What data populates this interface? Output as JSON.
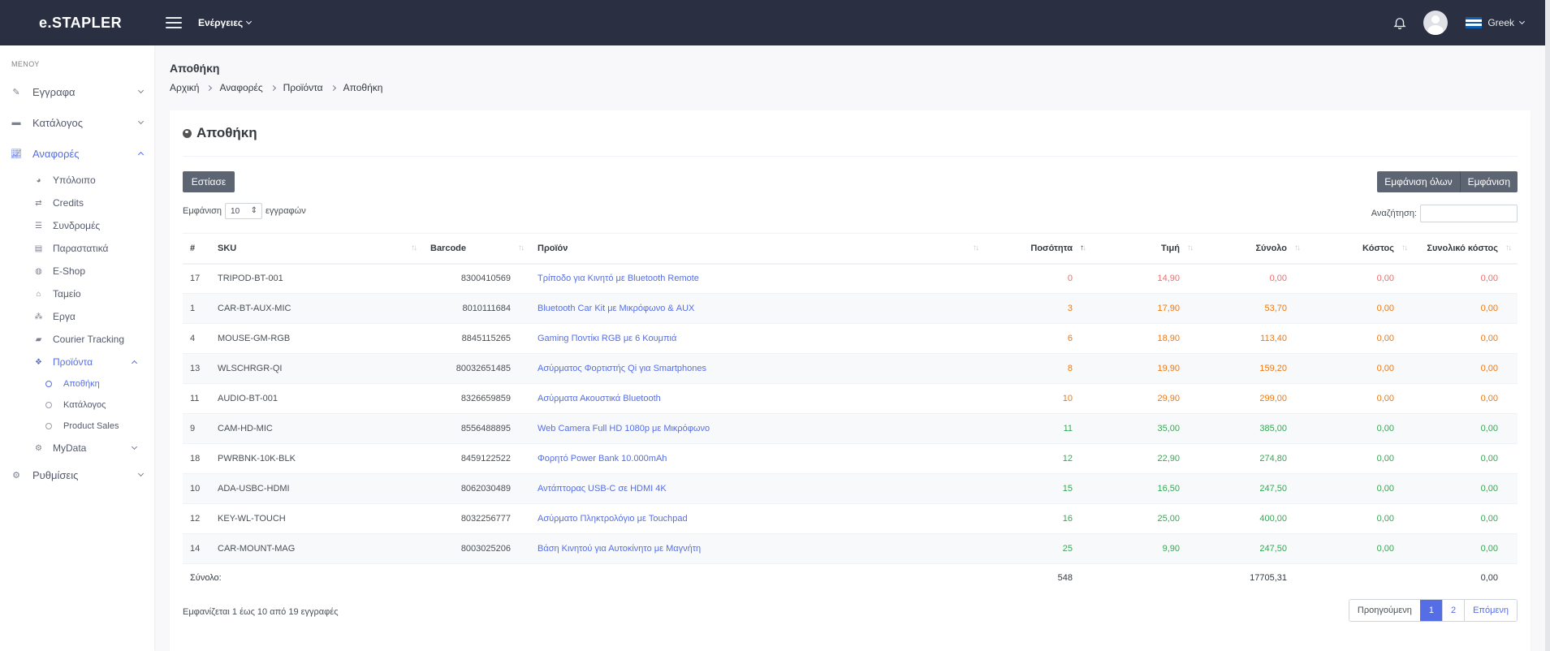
{
  "app": {
    "brand": "e.STAPLER"
  },
  "topbar": {
    "actions_label": "Ενέργειες",
    "language": "Greek"
  },
  "sidebar": {
    "menu_title": "ΜΕΝΟΥ",
    "items": [
      {
        "label": "Εγγραφα",
        "icon": "pencil-icon"
      },
      {
        "label": "Κατάλογος",
        "icon": "folder-icon"
      },
      {
        "label": "Αναφορές",
        "icon": "chart-line-icon"
      },
      {
        "label": "Ρυθμίσεις",
        "icon": "cogs-icon"
      }
    ],
    "reports_sub": [
      {
        "label": "Υπόλοιπο",
        "icon": "pie-icon"
      },
      {
        "label": "Credits",
        "icon": "exchange-icon"
      },
      {
        "label": "Συνδρομές",
        "icon": "list-icon"
      },
      {
        "label": "Παραστατικά",
        "icon": "book-icon"
      },
      {
        "label": "E-Shop",
        "icon": "globe-icon"
      },
      {
        "label": "Ταμείο",
        "icon": "store-icon"
      },
      {
        "label": "Εργα",
        "icon": "sitemap-icon"
      },
      {
        "label": "Courier Tracking",
        "icon": "truck-icon"
      },
      {
        "label": "Προϊόντα",
        "icon": "cubes-icon"
      },
      {
        "label": "MyData",
        "icon": "gears-icon"
      }
    ],
    "products_sub": [
      {
        "label": "Αποθήκη"
      },
      {
        "label": "Κατάλογος"
      },
      {
        "label": "Product Sales"
      }
    ]
  },
  "page": {
    "title": "Αποθήκη",
    "breadcrumb": [
      "Αρχική",
      "Αναφορές",
      "Προϊόντα",
      "Αποθήκη"
    ]
  },
  "card": {
    "title": "Αποθήκη",
    "focus_button": "Εστίασε",
    "show_all_button": "Εμφάνιση όλων",
    "show_button": "Εμφάνιση",
    "length_prefix": "Εμφάνιση",
    "length_value": "10",
    "length_suffix": "εγγραφών",
    "search_label": "Αναζήτηση:",
    "search_value": ""
  },
  "table": {
    "headers": [
      "#",
      "SKU",
      "Barcode",
      "Προϊόν",
      "Ποσότητα",
      "Τιμή",
      "Σύνολο",
      "Κόστος",
      "Συνολικό κόστος"
    ],
    "rows": [
      {
        "id": "17",
        "sku": "TRIPOD-BT-001",
        "barcode": "8300410569",
        "product": "Τρίποδο για Κινητό με Bluetooth Remote",
        "qty": "0",
        "price": "14,90",
        "total": "0,00",
        "cost": "0,00",
        "total_cost": "0,00",
        "level": "red"
      },
      {
        "id": "1",
        "sku": "CAR-BT-AUX-MIC",
        "barcode": "8010111684",
        "product": "Bluetooth Car Kit με Μικρόφωνο & AUX",
        "qty": "3",
        "price": "17,90",
        "total": "53,70",
        "cost": "0,00",
        "total_cost": "0,00",
        "level": "orange"
      },
      {
        "id": "4",
        "sku": "MOUSE-GM-RGB",
        "barcode": "8845115265",
        "product": "Gaming Ποντίκι RGB με 6 Κουμπιά",
        "qty": "6",
        "price": "18,90",
        "total": "113,40",
        "cost": "0,00",
        "total_cost": "0,00",
        "level": "orange"
      },
      {
        "id": "13",
        "sku": "WLSCHRGR-QI",
        "barcode": "80032651485",
        "product": "Ασύρματος Φορτιστής Qi για Smartphones",
        "qty": "8",
        "price": "19,90",
        "total": "159,20",
        "cost": "0,00",
        "total_cost": "0,00",
        "level": "orange"
      },
      {
        "id": "11",
        "sku": "AUDIO-BT-001",
        "barcode": "8326659859",
        "product": "Ασύρματα Ακουστικά Bluetooth",
        "qty": "10",
        "price": "29,90",
        "total": "299,00",
        "cost": "0,00",
        "total_cost": "0,00",
        "level": "orange"
      },
      {
        "id": "9",
        "sku": "CAM-HD-MIC",
        "barcode": "8556488895",
        "product": "Web Camera Full HD 1080p με Μικρόφωνο",
        "qty": "11",
        "price": "35,00",
        "total": "385,00",
        "cost": "0,00",
        "total_cost": "0,00",
        "level": "green"
      },
      {
        "id": "18",
        "sku": "PWRBNK-10K-BLK",
        "barcode": "8459122522",
        "product": "Φορητό Power Bank 10.000mAh",
        "qty": "12",
        "price": "22,90",
        "total": "274,80",
        "cost": "0,00",
        "total_cost": "0,00",
        "level": "green"
      },
      {
        "id": "10",
        "sku": "ADA-USBC-HDMI",
        "barcode": "8062030489",
        "product": "Αντάπτορας USB-C σε HDMI 4K",
        "qty": "15",
        "price": "16,50",
        "total": "247,50",
        "cost": "0,00",
        "total_cost": "0,00",
        "level": "green"
      },
      {
        "id": "12",
        "sku": "KEY-WL-TOUCH",
        "barcode": "8032256777",
        "product": "Ασύρματο Πληκτρολόγιο με Touchpad",
        "qty": "16",
        "price": "25,00",
        "total": "400,00",
        "cost": "0,00",
        "total_cost": "0,00",
        "level": "green"
      },
      {
        "id": "14",
        "sku": "CAR-MOUNT-MAG",
        "barcode": "8003025206",
        "product": "Βάση Κινητού για Αυτοκίνητο με Μαγνήτη",
        "qty": "25",
        "price": "9,90",
        "total": "247,50",
        "cost": "0,00",
        "total_cost": "0,00",
        "level": "green"
      }
    ],
    "footer": {
      "label": "Σύνολο:",
      "qty": "548",
      "total": "17705,31",
      "total_cost": "0,00"
    }
  },
  "pagination": {
    "info": "Εμφανίζεται 1 έως 10 από 19 εγγραφές",
    "prev": "Προηγούμενη",
    "pages": [
      "1",
      "2"
    ],
    "current": "1",
    "next": "Επόμενη"
  },
  "colors": {
    "topbar": "#2a3042",
    "accent": "#556ee6",
    "red": "#f46a6a",
    "orange": "#f1780e",
    "green": "#34a853"
  }
}
